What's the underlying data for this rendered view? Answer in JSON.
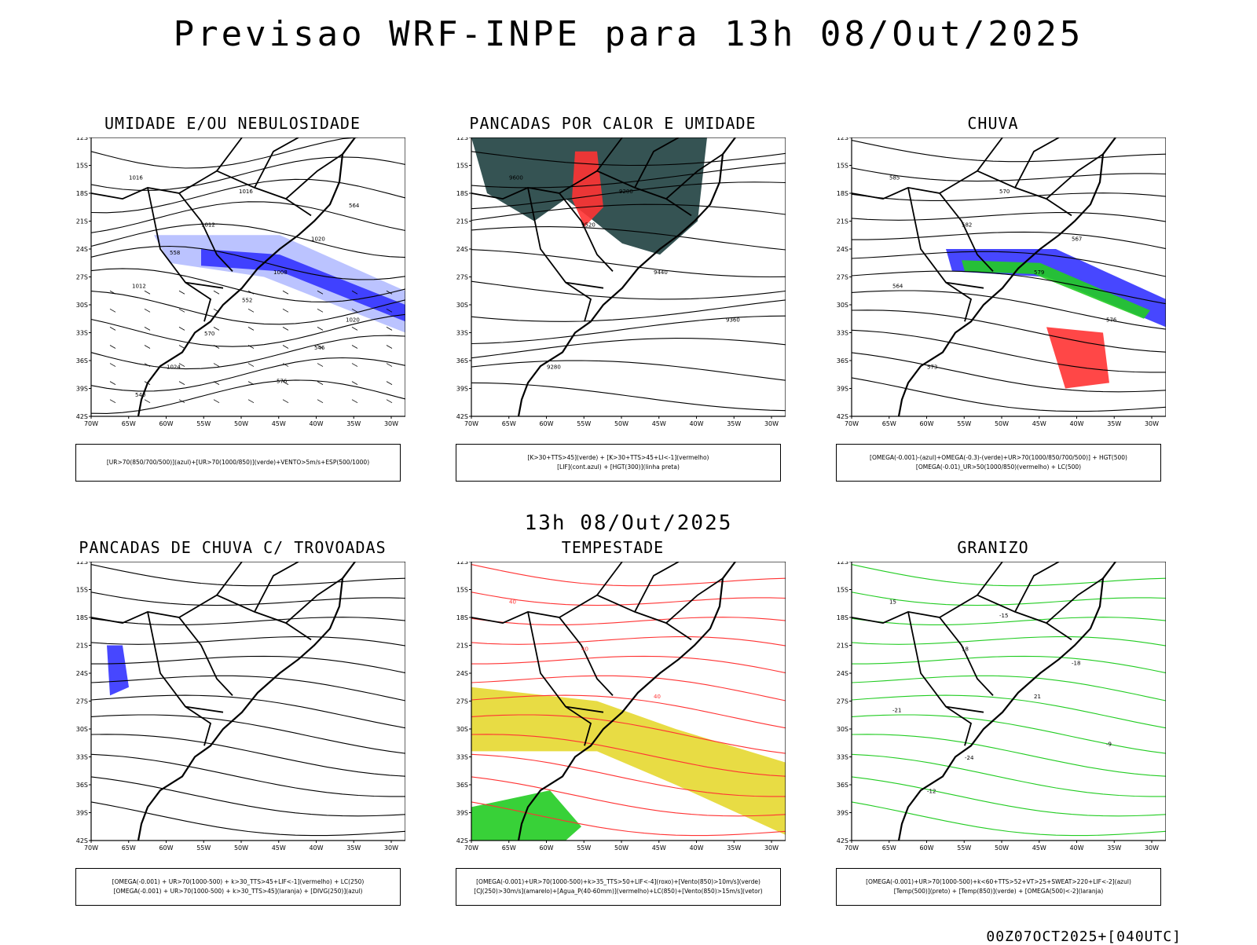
{
  "header": {
    "title": "Previsao WRF-INPE  para 13h 08/Out/2025"
  },
  "mid_time": "13h 08/Out/2025",
  "footer": "00Z07OCT2025+[040UTC]",
  "axes": {
    "lat": [
      "12S",
      "15S",
      "18S",
      "21S",
      "24S",
      "27S",
      "30S",
      "33S",
      "36S",
      "39S",
      "42S"
    ],
    "lon": [
      "70W",
      "65W",
      "60W",
      "55W",
      "50W",
      "45W",
      "40W",
      "35W",
      "30W"
    ]
  },
  "colors": {
    "blue": "#3333ff",
    "green": "#22cc22",
    "red": "#ff3333",
    "yellow": "#e6d830",
    "lightblue": "#aab4ff",
    "dark": "#1f4040",
    "orange": "#ff8800"
  },
  "panels": [
    {
      "title": "UMIDADE E/OU NEBULOSIDADE",
      "legend": [
        "[UR>70(850/700/500)](azul)+[UR>70(1000/850)](verde)+VENTO>5m/s+ESP(500/1000)"
      ],
      "labels": [
        "1016",
        "1012",
        "1008",
        "1020",
        "1024",
        "1016",
        "1020",
        "1012",
        "570",
        "576",
        "564",
        "558",
        "552",
        "546",
        "540"
      ]
    },
    {
      "title": "PANCADAS POR CALOR E UMIDADE",
      "legend": [
        "[K>30+TTS>45](verde) + [K>30+TTS>45+LI<-1](vermelho)",
        "[LIF](cont.azul) + [HGT(300)](linha preta)"
      ],
      "labels": [
        "9600",
        "9520",
        "9440",
        "9360",
        "9280",
        "9200"
      ]
    },
    {
      "title": "CHUVA",
      "legend": [
        "[OMEGA(-0.001)-(azul)+OMEGA(-0.3)-(verde)+UR>70(1000/850/700/500)] + HGT(500)",
        "[OMEGA(-0.01)_UR>50(1000/850)(vermelho) + LC(500)"
      ],
      "labels": [
        "585",
        "582",
        "579",
        "576",
        "573",
        "570",
        "567",
        "564"
      ]
    },
    {
      "title": "PANCADAS DE CHUVA C/ TROVOADAS",
      "legend": [
        "[OMEGA(-0.001) + UR>70(1000-500) + k>30_TTS>45+LIF<-1](vermelho) + LC(250)",
        "[OMEGA(-0.001) + UR>70(1000-500) + k>30_TTS>45](laranja) + [DIVG(250)](azul)"
      ],
      "labels": []
    },
    {
      "title": "TEMPESTADE",
      "legend": [
        "[OMEGA(-0.001)+UR>70(1000-500)+k>35_TTS>50+LIF<-4](roxo)+[Vento(850)>10m/s](verde)",
        "[CJ(250)>30m/s](amarelo)+[Agua_P(40-60mm)](vermelho)+LC(850)+[Vento(850)>15m/s](vetor)"
      ],
      "labels": [
        "40",
        "40",
        "40"
      ]
    },
    {
      "title": "GRANIZO",
      "legend": [
        "[OMEGA(-0.001)+UR>70(1000-500)+k<60+TTS>52+VT>25+SWEAT>220+LIF<-2](azul)",
        "[Temp(500)](preto) + [Temp(850)](verde) + [OMEGA(500)<-2](laranja)"
      ],
      "labels": [
        "15",
        "18",
        "21",
        "-9",
        "-12",
        "-15",
        "-18",
        "-21",
        "-24"
      ]
    }
  ]
}
